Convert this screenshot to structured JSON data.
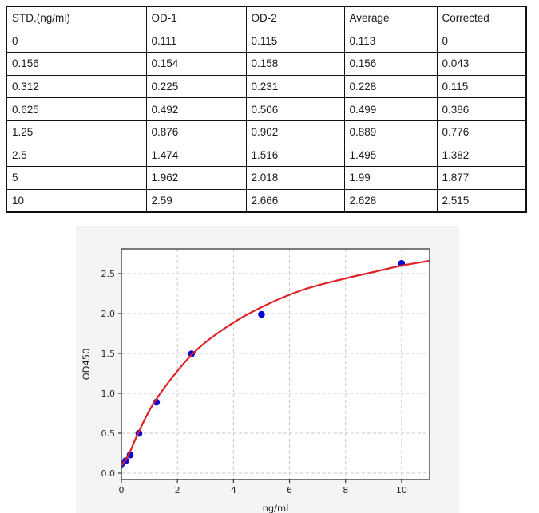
{
  "table": {
    "headers": [
      "STD.(ng/ml)",
      "OD-1",
      "OD-2",
      "Average",
      "Corrected"
    ],
    "rows": [
      [
        "0",
        "0.111",
        "0.115",
        "0.113",
        "0"
      ],
      [
        "0.156",
        "0.154",
        "0.158",
        "0.156",
        "0.043"
      ],
      [
        "0.312",
        "0.225",
        "0.231",
        "0.228",
        "0.115"
      ],
      [
        "0.625",
        "0.492",
        "0.506",
        "0.499",
        "0.386"
      ],
      [
        "1.25",
        "0.876",
        "0.902",
        "0.889",
        "0.776"
      ],
      [
        "2.5",
        "1.474",
        "1.516",
        "1.495",
        "1.382"
      ],
      [
        "5",
        "1.962",
        "2.018",
        "1.99",
        "1.877"
      ],
      [
        "10",
        "2.59",
        "2.666",
        "2.628",
        "2.515"
      ]
    ]
  },
  "chart_data": {
    "type": "scatter",
    "title": "",
    "xlabel": "ng/ml",
    "ylabel": "OD450",
    "xlim": [
      0,
      11
    ],
    "ylim": [
      -0.08,
      2.81
    ],
    "xticks": [
      "0",
      "2",
      "4",
      "6",
      "8",
      "10"
    ],
    "yticks": [
      "0.0",
      "0.5",
      "1.0",
      "1.5",
      "2.0",
      "2.5"
    ],
    "grid": true,
    "legend_position": "none",
    "series": [
      {
        "name": "standard-points",
        "type": "scatter",
        "color": "#0606d6",
        "x": [
          0,
          0.156,
          0.312,
          0.625,
          1.25,
          2.5,
          5,
          10
        ],
        "y": [
          0.113,
          0.156,
          0.228,
          0.499,
          0.889,
          1.495,
          1.99,
          2.628
        ]
      },
      {
        "name": "fitted-curve",
        "type": "line",
        "color": "#dd2127",
        "x": [
          0,
          0.156,
          0.312,
          0.625,
          1.25,
          2.5,
          3.75,
          5,
          6.5,
          8,
          9,
          10,
          11
        ],
        "y": [
          0.09,
          0.17,
          0.27,
          0.52,
          0.93,
          1.48,
          1.83,
          2.08,
          2.3,
          2.44,
          2.52,
          2.6,
          2.66
        ]
      }
    ],
    "colors": {
      "figure_bg": "#f4f4f4",
      "plot_bg": "#ffffff",
      "grid": "#c9c9c9",
      "spine": "#59595b",
      "tick": "#333333",
      "tick_label": "#262626",
      "axis_label": "#1f1f1f"
    }
  }
}
